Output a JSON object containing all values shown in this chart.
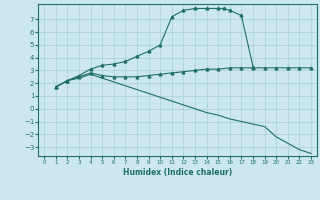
{
  "xlabel": "Humidex (Indice chaleur)",
  "bg_color": "#cce8ee",
  "line_color": "#1e6e6a",
  "grid_color": "#aacdd4",
  "xlim": [
    -0.5,
    23.5
  ],
  "ylim": [
    -3.7,
    8.2
  ],
  "xticks": [
    0,
    1,
    2,
    3,
    4,
    5,
    6,
    7,
    8,
    9,
    10,
    11,
    12,
    13,
    14,
    15,
    16,
    17,
    18,
    19,
    20,
    21,
    22,
    23
  ],
  "yticks": [
    -3,
    -2,
    -1,
    0,
    1,
    2,
    3,
    4,
    5,
    6,
    7
  ],
  "line1_x": [
    1,
    2,
    3,
    4,
    5,
    6,
    7,
    8,
    9,
    10,
    11,
    12,
    13,
    14,
    15,
    15.5,
    16,
    17,
    18
  ],
  "line1_y": [
    1.7,
    2.2,
    2.6,
    3.1,
    3.4,
    3.5,
    3.7,
    4.1,
    4.5,
    5.0,
    7.2,
    7.7,
    7.85,
    7.85,
    7.85,
    7.85,
    7.7,
    7.3,
    3.3
  ],
  "line2_x": [
    1,
    2,
    3,
    4,
    5,
    6,
    7,
    8,
    9,
    10,
    11,
    12,
    13,
    14,
    15,
    16,
    17,
    18,
    19,
    20,
    21,
    22,
    23
  ],
  "line2_y": [
    1.7,
    2.2,
    2.5,
    2.8,
    2.6,
    2.5,
    2.5,
    2.5,
    2.6,
    2.7,
    2.8,
    2.9,
    3.0,
    3.1,
    3.1,
    3.2,
    3.2,
    3.2,
    3.2,
    3.2,
    3.2,
    3.2,
    3.2
  ],
  "line3_x": [
    1,
    2,
    3,
    4,
    5,
    6,
    7,
    8,
    9,
    10,
    11,
    12,
    13,
    14,
    15,
    16,
    17,
    18,
    19,
    20,
    21,
    22,
    23
  ],
  "line3_y": [
    1.7,
    2.2,
    2.4,
    2.7,
    2.4,
    2.1,
    1.8,
    1.5,
    1.2,
    0.9,
    0.6,
    0.3,
    0.0,
    -0.3,
    -0.5,
    -0.8,
    -1.0,
    -1.2,
    -1.4,
    -2.2,
    -2.7,
    -3.2,
    -3.5
  ]
}
